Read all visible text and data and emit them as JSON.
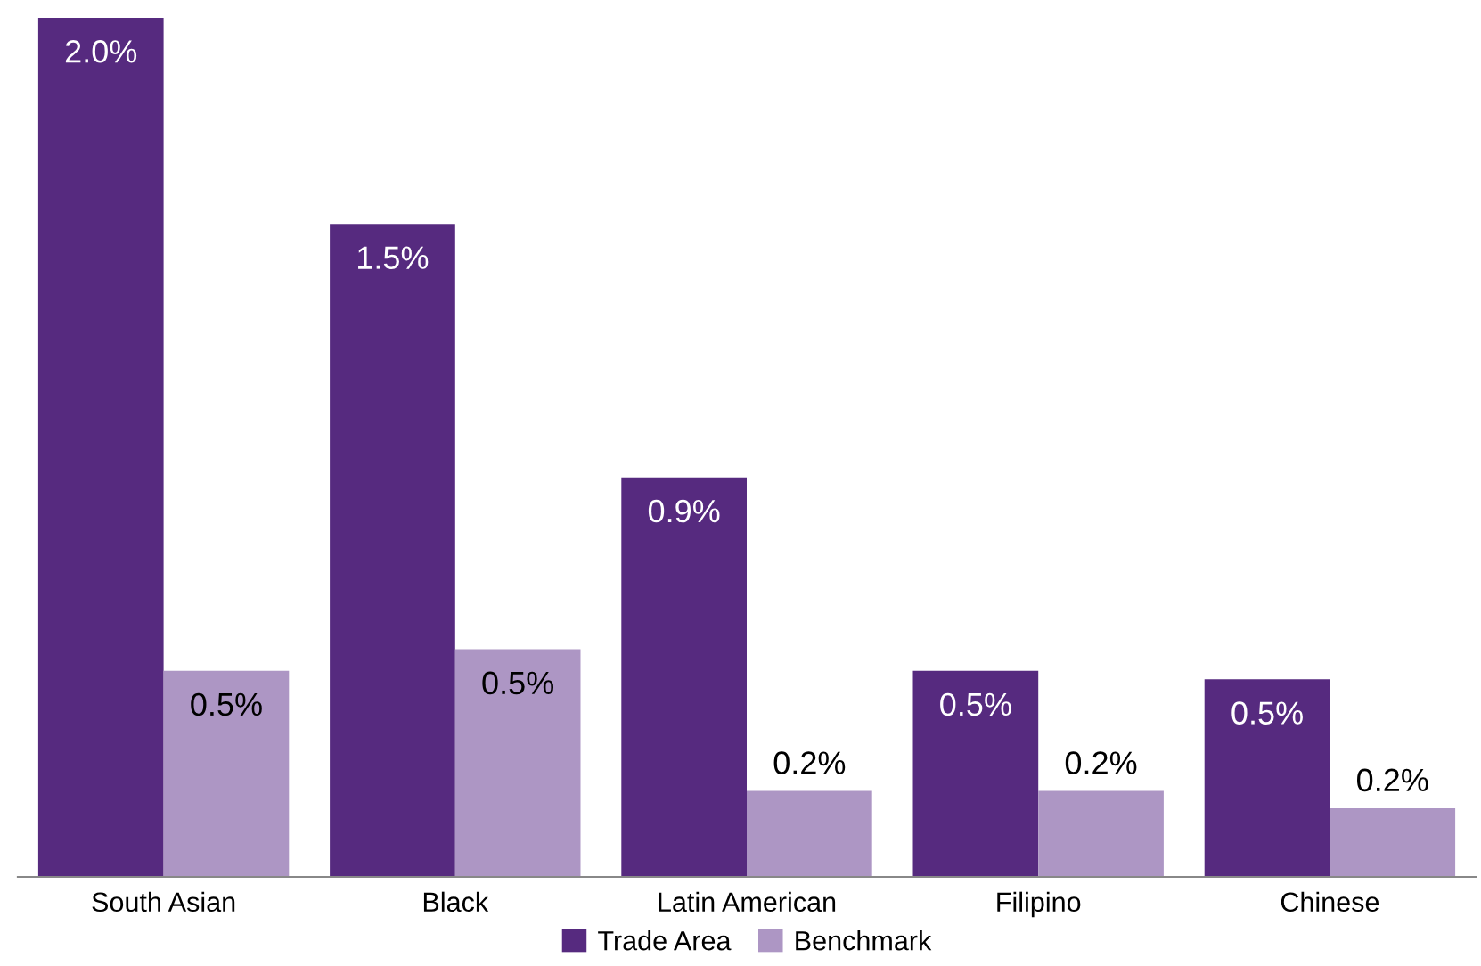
{
  "chart_data": {
    "type": "bar",
    "categories": [
      "South Asian",
      "Black",
      "Latin American",
      "Filipino",
      "Chinese"
    ],
    "series": [
      {
        "name": "Trade Area",
        "color": "#562a7f",
        "values": [
          2.0,
          1.52,
          0.93,
          0.48,
          0.46
        ],
        "value_labels": [
          "2.0%",
          "1.5%",
          "0.9%",
          "0.5%",
          "0.5%"
        ]
      },
      {
        "name": "Benchmark",
        "color": "#ad96c4",
        "values": [
          0.48,
          0.53,
          0.2,
          0.2,
          0.16
        ],
        "value_labels": [
          "0.5%",
          "0.5%",
          "0.2%",
          "0.2%",
          "0.2%"
        ]
      }
    ],
    "legend": "bottom",
    "grid": false
  }
}
